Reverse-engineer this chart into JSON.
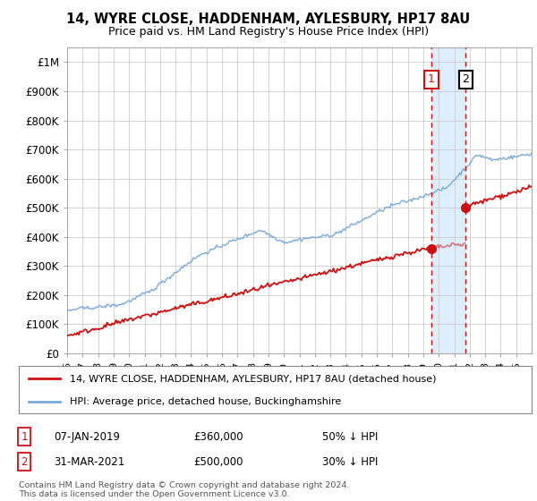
{
  "title": "14, WYRE CLOSE, HADDENHAM, AYLESBURY, HP17 8AU",
  "subtitle": "Price paid vs. HM Land Registry's House Price Index (HPI)",
  "ylim": [
    0,
    1050000
  ],
  "yticks": [
    0,
    100000,
    200000,
    300000,
    400000,
    500000,
    600000,
    700000,
    800000,
    900000,
    1000000
  ],
  "ytick_labels": [
    "£0",
    "£100K",
    "£200K",
    "£300K",
    "£400K",
    "£500K",
    "£600K",
    "£700K",
    "£800K",
    "£900K",
    "£1M"
  ],
  "hpi_color": "#7aaadd",
  "price_color": "#cc1111",
  "t1_year": 2019.03,
  "t1_price": 360000,
  "t2_year": 2021.25,
  "t2_price": 500000,
  "legend_line1": "14, WYRE CLOSE, HADDENHAM, AYLESBURY, HP17 8AU (detached house)",
  "legend_line2": "HPI: Average price, detached house, Buckinghamshire",
  "footnote": "Contains HM Land Registry data © Crown copyright and database right 2024.\nThis data is licensed under the Open Government Licence v3.0.",
  "background_color": "#ffffff",
  "grid_color": "#cccccc",
  "highlight_color": "#ddeeff",
  "table_row1": [
    "1",
    "07-JAN-2019",
    "£360,000",
    "50% ↓ HPI"
  ],
  "table_row2": [
    "2",
    "31-MAR-2021",
    "£500,000",
    "30% ↓ HPI"
  ],
  "xstart": 1995.5,
  "xend": 2025.5
}
